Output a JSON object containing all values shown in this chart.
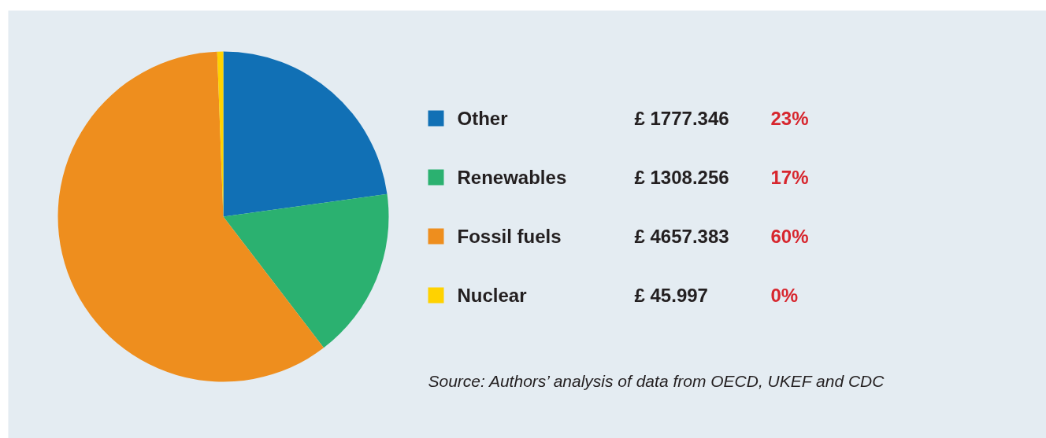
{
  "chart_data": {
    "type": "pie",
    "categories": [
      "Other",
      "Renewables",
      "Fossil fuels",
      "Nuclear"
    ],
    "values": [
      1777.346,
      1308.256,
      4657.383,
      45.997
    ],
    "colors": [
      "#1170b5",
      "#2bb170",
      "#ee8e1e",
      "#ffd200"
    ],
    "value_labels": [
      "£ 1777.346",
      "£ 1308.256",
      "£ 4657.383",
      "£ 45.997"
    ],
    "annotations": [
      "23%",
      "17%",
      "60%",
      "0%",
      "Source: Authors’ analysis of data from OECD, UKEF and CDC"
    ],
    "legend": "right"
  }
}
